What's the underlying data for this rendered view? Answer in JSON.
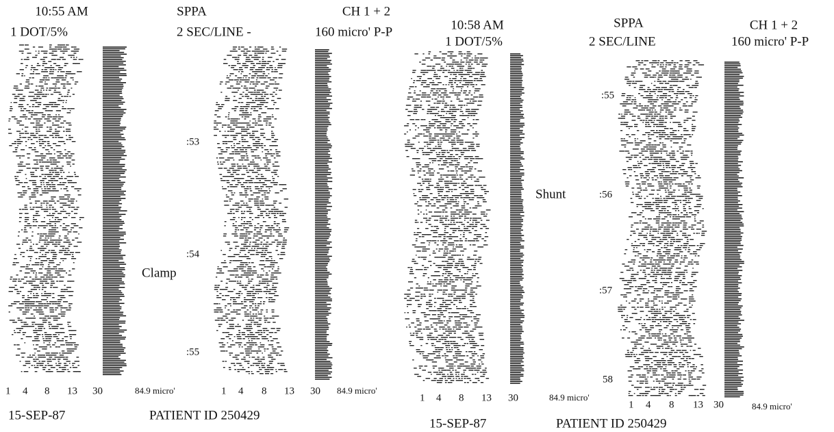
{
  "panels": [
    {
      "time": "10:55 AM",
      "scale": "1 DOT/5%",
      "mode": "SPPA",
      "rate": "2 SEC/LINE -",
      "channel": "CH 1 + 2",
      "amplitude": "160 micro' P-P",
      "plots": [
        {
          "freq_ticks": [
            "1",
            "4",
            "8",
            "13",
            "30"
          ],
          "amplitude_label": "84.9 micro'"
        },
        {
          "freq_ticks": [
            "1",
            "4",
            "8",
            "13",
            "30"
          ],
          "amplitude_label": "84.9 micro'"
        }
      ],
      "time_marks": [
        ":53",
        ":54",
        ":55"
      ],
      "annotation": "Clamp",
      "date": "15-SEP-87",
      "patient_id": "PATIENT ID  250429"
    },
    {
      "time": "10:58 AM",
      "scale": "1 DOT/5%",
      "mode": "SPPA",
      "rate": "2 SEC/LINE",
      "channel": "CH 1 + 2",
      "amplitude": "160 micro' P-P",
      "plots": [
        {
          "freq_ticks": [
            "1",
            "4",
            "8",
            "13",
            "30"
          ],
          "amplitude_label": "84.9 micro'"
        },
        {
          "freq_ticks": [
            "1",
            "4",
            "8",
            "13",
            "30"
          ],
          "amplitude_label": "84.9 micro'"
        }
      ],
      "time_marks": [
        ":55",
        ":56",
        ":57",
        "58"
      ],
      "annotation": "Shunt",
      "date": "15-SEP-87",
      "patient_id": "PATIENT ID  250429"
    }
  ]
}
